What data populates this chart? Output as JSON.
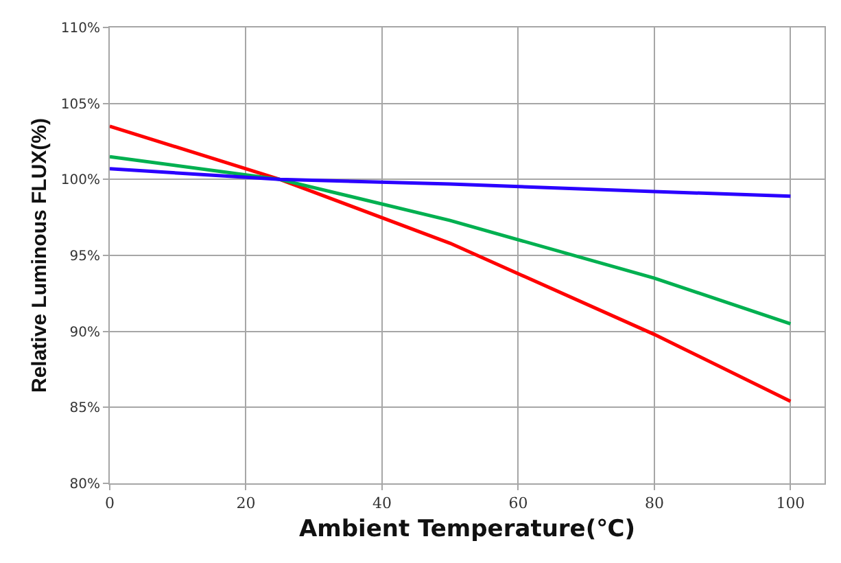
{
  "chart_data": {
    "type": "line",
    "xlabel": "Ambient Temperature(℃)",
    "ylabel": "Relative Luminous FLUX(%)",
    "x": [
      0,
      25,
      50,
      80,
      100
    ],
    "series": [
      {
        "color": "#ff0000",
        "values": [
          103.5,
          100,
          95.8,
          89.8,
          85.4
        ]
      },
      {
        "color": "#00b050",
        "values": [
          101.5,
          100,
          97.3,
          93.5,
          90.5
        ]
      },
      {
        "color": "#2a00ff",
        "values": [
          100.7,
          100,
          99.7,
          99.2,
          98.9
        ]
      }
    ],
    "xlim": [
      0,
      105
    ],
    "xticks": [
      0,
      20,
      40,
      60,
      80,
      100
    ],
    "ylim": [
      80,
      110
    ],
    "yticks": [
      {
        "value": 80,
        "label": "80%"
      },
      {
        "value": 85,
        "label": "85%"
      },
      {
        "value": 90,
        "label": "90%"
      },
      {
        "value": 95,
        "label": "95%"
      },
      {
        "value": 100,
        "label": "100%"
      },
      {
        "value": 105,
        "label": "105%"
      },
      {
        "value": 110,
        "label": "110%"
      }
    ],
    "grid": true,
    "legend": false,
    "marker": "none",
    "line_style": "solid"
  }
}
